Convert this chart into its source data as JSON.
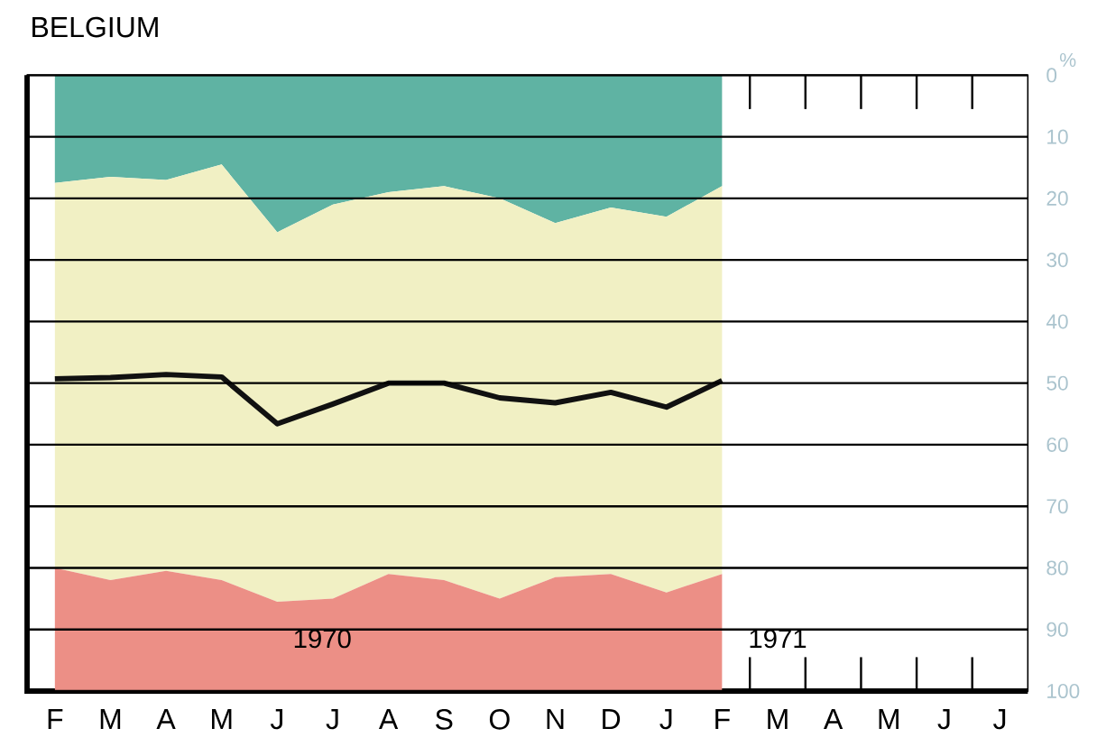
{
  "chart_data": {
    "type": "area",
    "title": "BELGIUM",
    "ylabel": "%",
    "stacked": true,
    "grid": "y",
    "categories": [
      "F",
      "M",
      "A",
      "M",
      "J",
      "J",
      "A",
      "S",
      "O",
      "N",
      "D",
      "J",
      "F",
      "M",
      "A",
      "M",
      "J",
      "J"
    ],
    "ylim": [
      100,
      0
    ],
    "yticks": [
      0,
      10,
      20,
      30,
      40,
      50,
      60,
      70,
      80,
      90,
      100
    ],
    "series": [
      {
        "color": "#5fb3a3",
        "values": [
          17.5,
          16.5,
          17,
          14.5,
          25.5,
          21,
          19,
          18,
          20,
          24,
          21.5,
          23,
          18,
          null,
          null,
          null,
          null,
          null
        ]
      },
      {
        "color": "#f1f0c4",
        "values": [
          62.5,
          65.5,
          63.5,
          67.5,
          60,
          64,
          62,
          64,
          65,
          57.5,
          59.5,
          61,
          63,
          null,
          null,
          null,
          null,
          null
        ]
      },
      {
        "color": "#ec8f86",
        "values": [
          20,
          18,
          19.5,
          18,
          14.5,
          15,
          19,
          18,
          15,
          18.5,
          19,
          16,
          19,
          null,
          null,
          null,
          null,
          null
        ]
      },
      {
        "type": "line",
        "color": "#111111",
        "line_style": "solid",
        "values": [
          49.3,
          49.1,
          48.6,
          49,
          56.6,
          53.4,
          50,
          50,
          52.4,
          53.2,
          51.5,
          53.9,
          49.6,
          null,
          null,
          null,
          null,
          null
        ]
      }
    ],
    "annotations": [
      "1970",
      "1971"
    ]
  }
}
